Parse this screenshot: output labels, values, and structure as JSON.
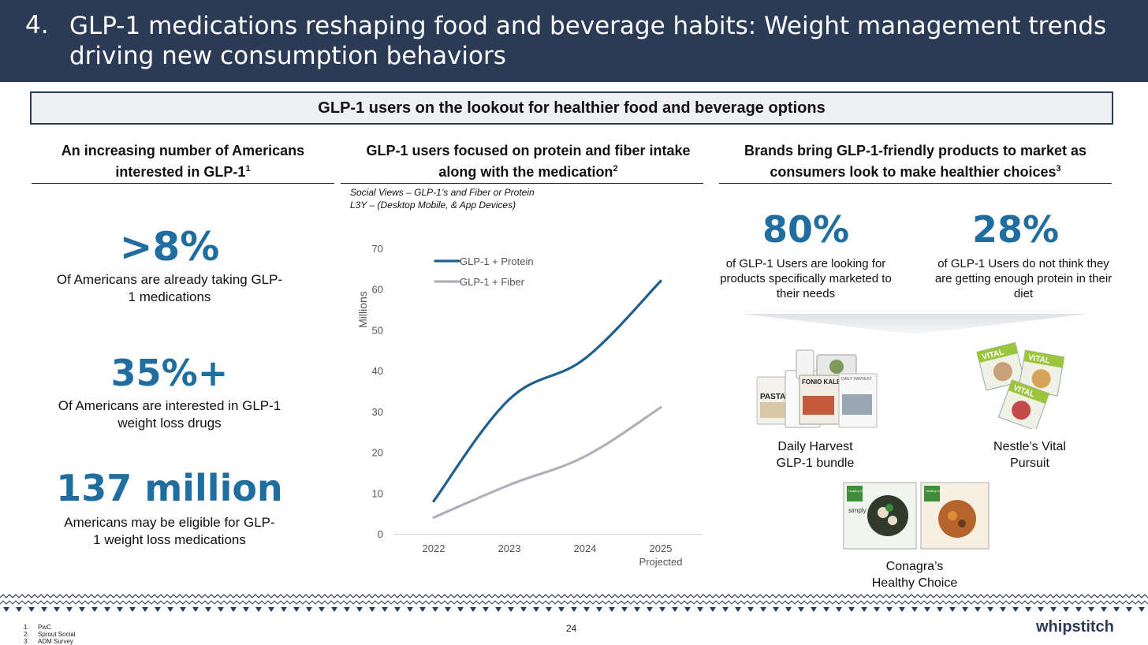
{
  "header": {
    "number": "4.",
    "title": "GLP-1 medications reshaping food and beverage habits: Weight management trends driving new consumption behaviors"
  },
  "banner": "GLP-1 users on the lookout for healthier food and beverage options",
  "left": {
    "heading": "An increasing number of Americans interested in GLP-1",
    "footnote_ref": "1",
    "stats": [
      {
        "value": ">8%",
        "desc": "Of Americans are already taking GLP-1 medications"
      },
      {
        "value": "35%+",
        "desc": "Of Americans are interested in GLP-1 weight loss drugs"
      },
      {
        "value": "137 million",
        "desc": "Americans may be eligible for GLP-1 weight loss medications"
      }
    ]
  },
  "middle": {
    "heading": "GLP-1 users focused on protein and fiber intake along with the medication",
    "footnote_ref": "2",
    "note_line1": "Social Views –  GLP-1’s and Fiber or Protein",
    "note_line2": "L3Y – (Desktop Mobile, & App Devices)"
  },
  "chart_data": {
    "type": "line",
    "ylabel": "Millions",
    "ylim": [
      0,
      70
    ],
    "yticks": [
      "0",
      "10",
      "20",
      "30",
      "40",
      "50",
      "60",
      "70"
    ],
    "categories": [
      "2022",
      "2023",
      "2024",
      "2025"
    ],
    "category_sublabels": [
      "",
      "",
      "",
      "Projected"
    ],
    "series": [
      {
        "name": "GLP-1 + Protein",
        "color": "#1f5f8b",
        "values": [
          8,
          33,
          43,
          62
        ]
      },
      {
        "name": "GLP-1 + Fiber",
        "color": "#b0b0bc",
        "values": [
          4,
          12,
          19,
          31
        ]
      }
    ],
    "legend": "top-left",
    "grid": false
  },
  "right": {
    "heading": "Brands bring GLP-1-friendly products to market as consumers look to make healthier choices",
    "footnote_ref": "3",
    "stats": [
      {
        "value": "80%",
        "desc": "of GLP-1 Users are looking for products specifically marketed to their needs"
      },
      {
        "value": "28%",
        "desc": "of GLP-1 Users do not think they are getting enough protein in their diet"
      }
    ],
    "products": [
      {
        "name": "Daily Harvest GLP-1 bundle",
        "line1": "Daily Harvest",
        "line2": "GLP-1 bundle",
        "pkg_text1": "FONIO KALE",
        "pkg_text2": "PASTA",
        "pkg_text3": "DAILY HARVEST"
      },
      {
        "name": "Nestle’s Vital Pursuit",
        "line1": "Nestle’s Vital",
        "line2": "Pursuit",
        "pkg_text1": "VITAL"
      },
      {
        "name": "Conagra’s Healthy Choice",
        "line1": "Conagra’s",
        "line2": "Healthy Choice",
        "pkg_text1": "Healthy Choice",
        "pkg_text2": "simply"
      }
    ]
  },
  "footer": {
    "footnotes": [
      {
        "n": "1.",
        "text": "PwC"
      },
      {
        "n": "2.",
        "text": "Sprout Social"
      },
      {
        "n": "3.",
        "text": "ADM Survey"
      }
    ],
    "page_number": "24",
    "logo": "whipstitch"
  }
}
